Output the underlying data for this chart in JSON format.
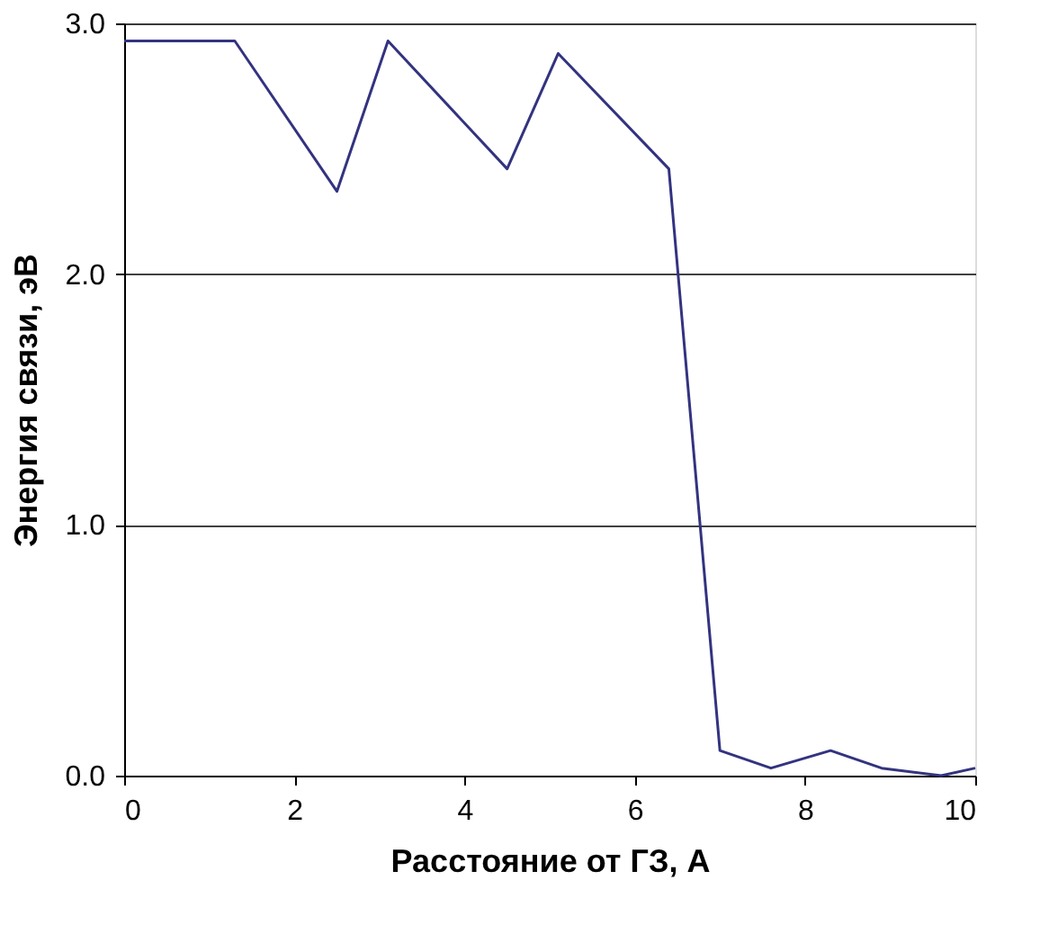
{
  "chart_data": {
    "type": "line",
    "xlabel": "Расстояние от ГЗ, А",
    "ylabel": "Энергия связи, эВ",
    "x": [
      0,
      1.3,
      2.5,
      3.1,
      4.5,
      5.1,
      6.4,
      7.0,
      7.6,
      8.3,
      8.9,
      9.6,
      10
    ],
    "series": [
      {
        "color": "#333380",
        "values": [
          2.93,
          2.93,
          2.33,
          2.93,
          2.42,
          2.88,
          2.42,
          0.1,
          0.03,
          0.1,
          0.03,
          0.0,
          0.03
        ]
      }
    ],
    "xlim": [
      0,
      10
    ],
    "xticks": [
      0,
      2,
      4,
      6,
      8,
      10
    ],
    "ylim": [
      0,
      3
    ],
    "yticks": [
      {
        "value": 0,
        "label": "0.0"
      },
      {
        "value": 1,
        "label": "1.0"
      },
      {
        "value": 2,
        "label": "2.0"
      },
      {
        "value": 3,
        "label": "3.0"
      }
    ],
    "grid": "y",
    "marker": "none",
    "line_style": "solid"
  }
}
